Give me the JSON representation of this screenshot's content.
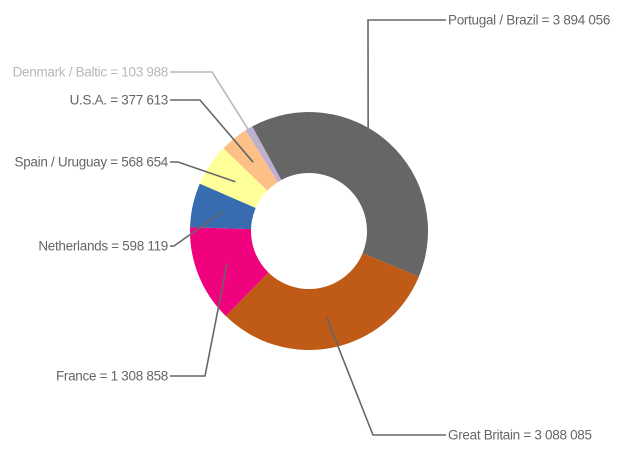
{
  "chart_data": {
    "type": "pie",
    "variant": "donut",
    "title": "",
    "labels": [
      "Portugal / Brazil = 3 894 056",
      "Great Britain = 3 088 085",
      "France = 1 308 858",
      "Netherlands = 598 119",
      "Spain / Uruguay = 568 654",
      "U.S.A. = 377 613",
      "Denmark / Baltic = 103 988"
    ],
    "series": [
      {
        "categories": [
          "Portugal / Brazil",
          "Great Britain",
          "France",
          "Netherlands",
          "Spain / Uruguay",
          "U.S.A.",
          "Denmark / Baltic"
        ],
        "values": [
          3894056,
          3088085,
          1308858,
          598119,
          568654,
          377613,
          103988
        ],
        "colors": [
          "#666666",
          "#bf5b17",
          "#f0027f",
          "#386cb0",
          "#ffff99",
          "#fdc086",
          "#beaed4"
        ]
      }
    ],
    "label_colors": [
      "#666666",
      "#666666",
      "#666666",
      "#666666",
      "#666666",
      "#666666",
      "#b8b8b8"
    ],
    "legend": "none",
    "grid": false
  }
}
